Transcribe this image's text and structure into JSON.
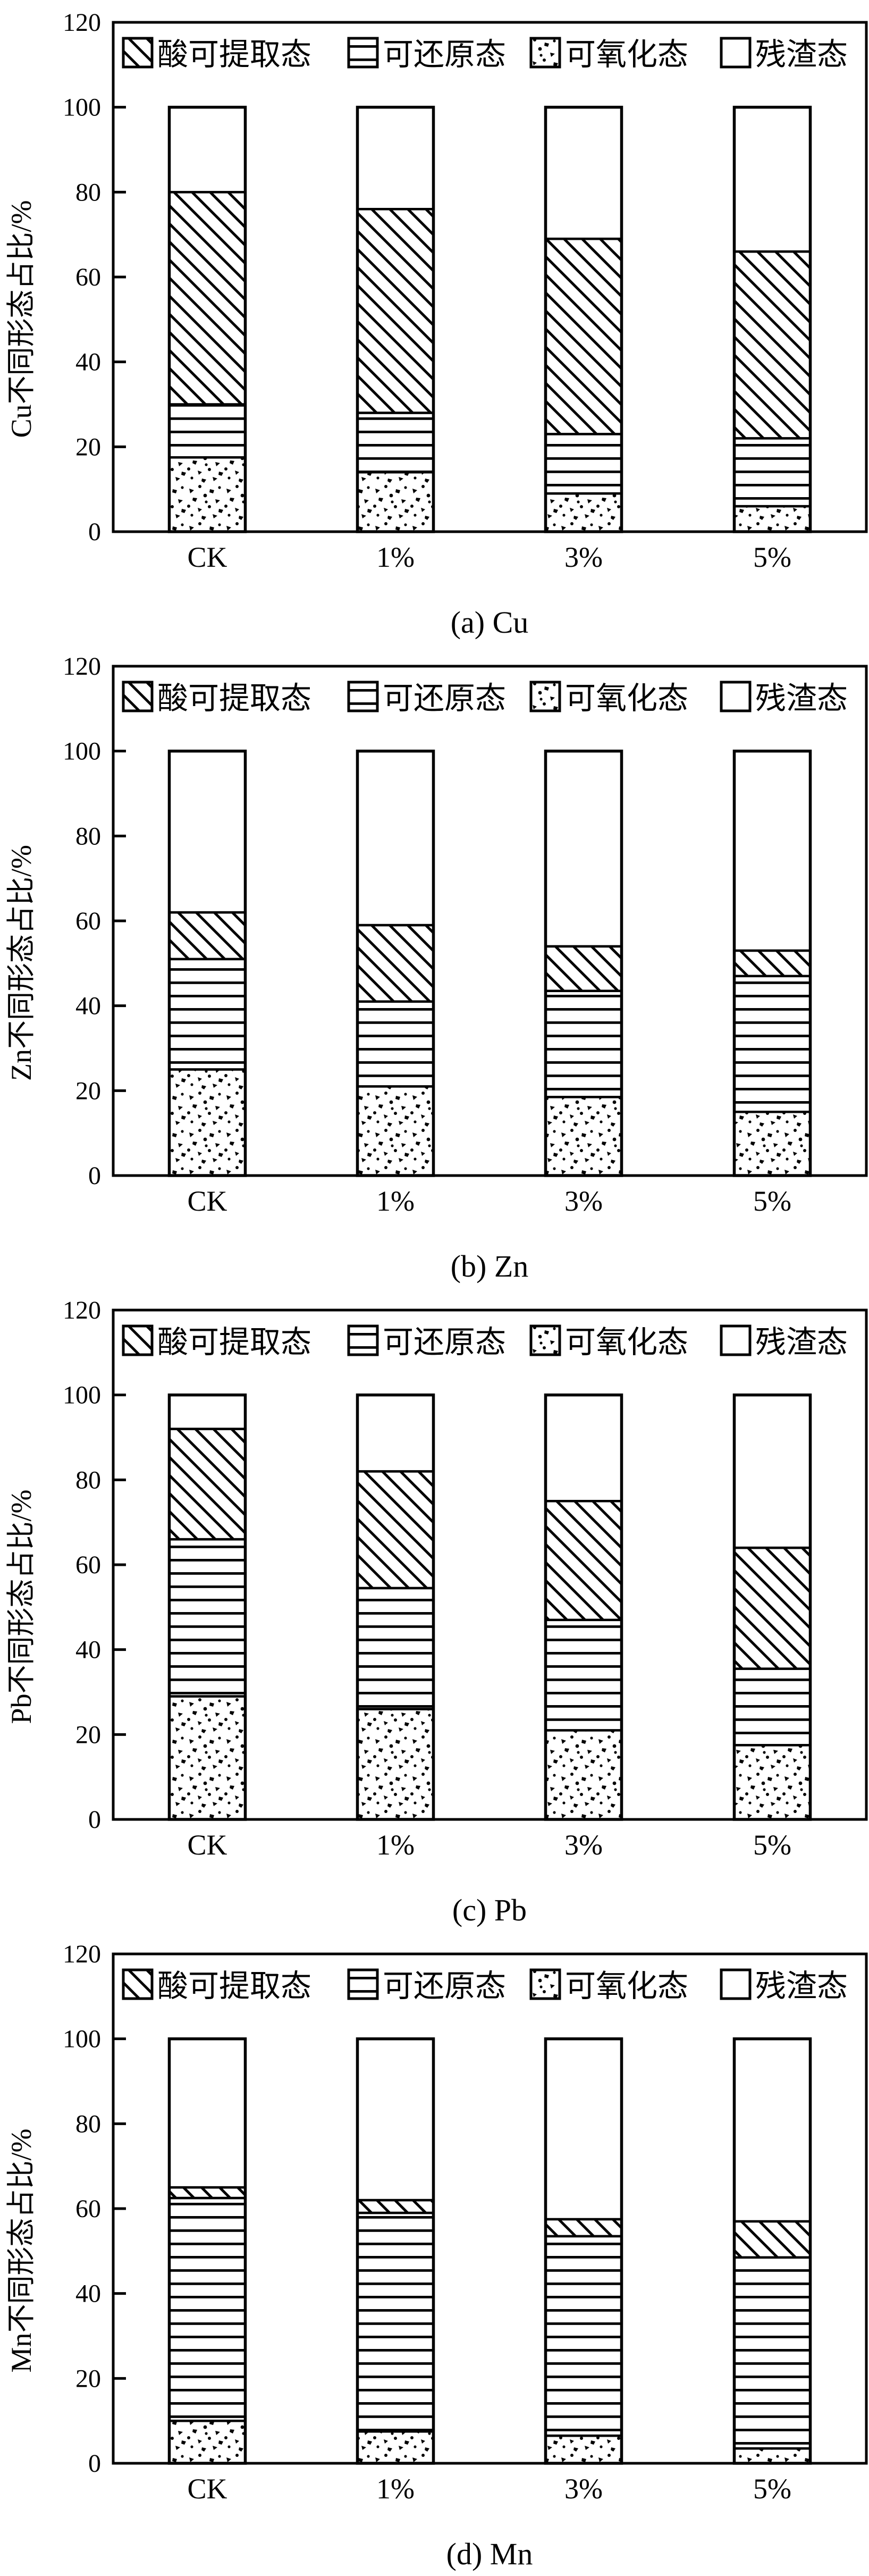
{
  "page": {
    "background": "#ffffff",
    "ink": "#000000"
  },
  "legend": {
    "items": [
      {
        "label": "酸可提取态",
        "pattern": "diagonal-hatch"
      },
      {
        "label": "可还原态",
        "pattern": "horizontal-lines"
      },
      {
        "label": "可氧化态",
        "pattern": "dots"
      },
      {
        "label": "残渣态",
        "pattern": "blank"
      }
    ]
  },
  "chart_data": [
    {
      "type": "bar",
      "stacked": true,
      "title": "(a) Cu",
      "ylabel": "Cu不同形态占比/%",
      "xlabel": "",
      "categories": [
        "CK",
        "1%",
        "3%",
        "5%"
      ],
      "ylim": [
        0,
        120
      ],
      "yticks": [
        0,
        20,
        40,
        60,
        80,
        100,
        120
      ],
      "grid": false,
      "legend_position": "top-inside",
      "stack_order_bottom_to_top": [
        "可氧化态",
        "可还原态",
        "酸可提取态",
        "残渣态"
      ],
      "series": [
        {
          "name": "酸可提取态",
          "pattern": "diagonal-hatch",
          "values": [
            50,
            48,
            46,
            44
          ]
        },
        {
          "name": "可还原态",
          "pattern": "horizontal-lines",
          "values": [
            12.5,
            14,
            14,
            16
          ]
        },
        {
          "name": "可氧化态",
          "pattern": "dots",
          "values": [
            17.5,
            14,
            9,
            6
          ]
        },
        {
          "name": "残渣态",
          "pattern": "blank",
          "values": [
            20,
            24,
            31,
            34
          ]
        }
      ]
    },
    {
      "type": "bar",
      "stacked": true,
      "title": "(b) Zn",
      "ylabel": "Zn不同形态占比/%",
      "xlabel": "",
      "categories": [
        "CK",
        "1%",
        "3%",
        "5%"
      ],
      "ylim": [
        0,
        120
      ],
      "yticks": [
        0,
        20,
        40,
        60,
        80,
        100,
        120
      ],
      "grid": false,
      "legend_position": "top-inside",
      "stack_order_bottom_to_top": [
        "可氧化态",
        "可还原态",
        "酸可提取态",
        "残渣态"
      ],
      "series": [
        {
          "name": "酸可提取态",
          "pattern": "diagonal-hatch",
          "values": [
            11,
            18,
            10.5,
            6
          ]
        },
        {
          "name": "可还原态",
          "pattern": "horizontal-lines",
          "values": [
            26,
            20,
            25,
            32
          ]
        },
        {
          "name": "可氧化态",
          "pattern": "dots",
          "values": [
            25,
            21,
            18.5,
            15
          ]
        },
        {
          "name": "残渣态",
          "pattern": "blank",
          "values": [
            38,
            41,
            46,
            47
          ]
        }
      ]
    },
    {
      "type": "bar",
      "stacked": true,
      "title": "(c) Pb",
      "ylabel": "Pb不同形态占比/%",
      "xlabel": "",
      "categories": [
        "CK",
        "1%",
        "3%",
        "5%"
      ],
      "ylim": [
        0,
        120
      ],
      "yticks": [
        0,
        20,
        40,
        60,
        80,
        100,
        120
      ],
      "grid": false,
      "legend_position": "top-inside",
      "stack_order_bottom_to_top": [
        "可氧化态",
        "可还原态",
        "酸可提取态",
        "残渣态"
      ],
      "series": [
        {
          "name": "酸可提取态",
          "pattern": "diagonal-hatch",
          "values": [
            26,
            27.5,
            28,
            28.5
          ]
        },
        {
          "name": "可还原态",
          "pattern": "horizontal-lines",
          "values": [
            37,
            28.5,
            26,
            18
          ]
        },
        {
          "name": "可氧化态",
          "pattern": "dots",
          "values": [
            29,
            26,
            21,
            17.5
          ]
        },
        {
          "name": "残渣态",
          "pattern": "blank",
          "values": [
            8,
            18,
            25,
            36
          ]
        }
      ]
    },
    {
      "type": "bar",
      "stacked": true,
      "title": "(d) Mn",
      "ylabel": "Mn不同形态占比/%",
      "xlabel": "",
      "categories": [
        "CK",
        "1%",
        "3%",
        "5%"
      ],
      "ylim": [
        0,
        120
      ],
      "yticks": [
        0,
        20,
        40,
        60,
        80,
        100,
        120
      ],
      "grid": false,
      "legend_position": "top-inside",
      "stack_order_bottom_to_top": [
        "可氧化态",
        "可还原态",
        "酸可提取态",
        "残渣态"
      ],
      "series": [
        {
          "name": "酸可提取态",
          "pattern": "diagonal-hatch",
          "values": [
            2.5,
            3,
            4,
            8.5
          ]
        },
        {
          "name": "可还原态",
          "pattern": "horizontal-lines",
          "values": [
            52.5,
            51.5,
            47,
            45
          ]
        },
        {
          "name": "可氧化态",
          "pattern": "dots",
          "values": [
            10,
            7.5,
            6.5,
            3.5
          ]
        },
        {
          "name": "残渣态",
          "pattern": "blank",
          "values": [
            35,
            38,
            42.5,
            43
          ]
        }
      ]
    }
  ]
}
